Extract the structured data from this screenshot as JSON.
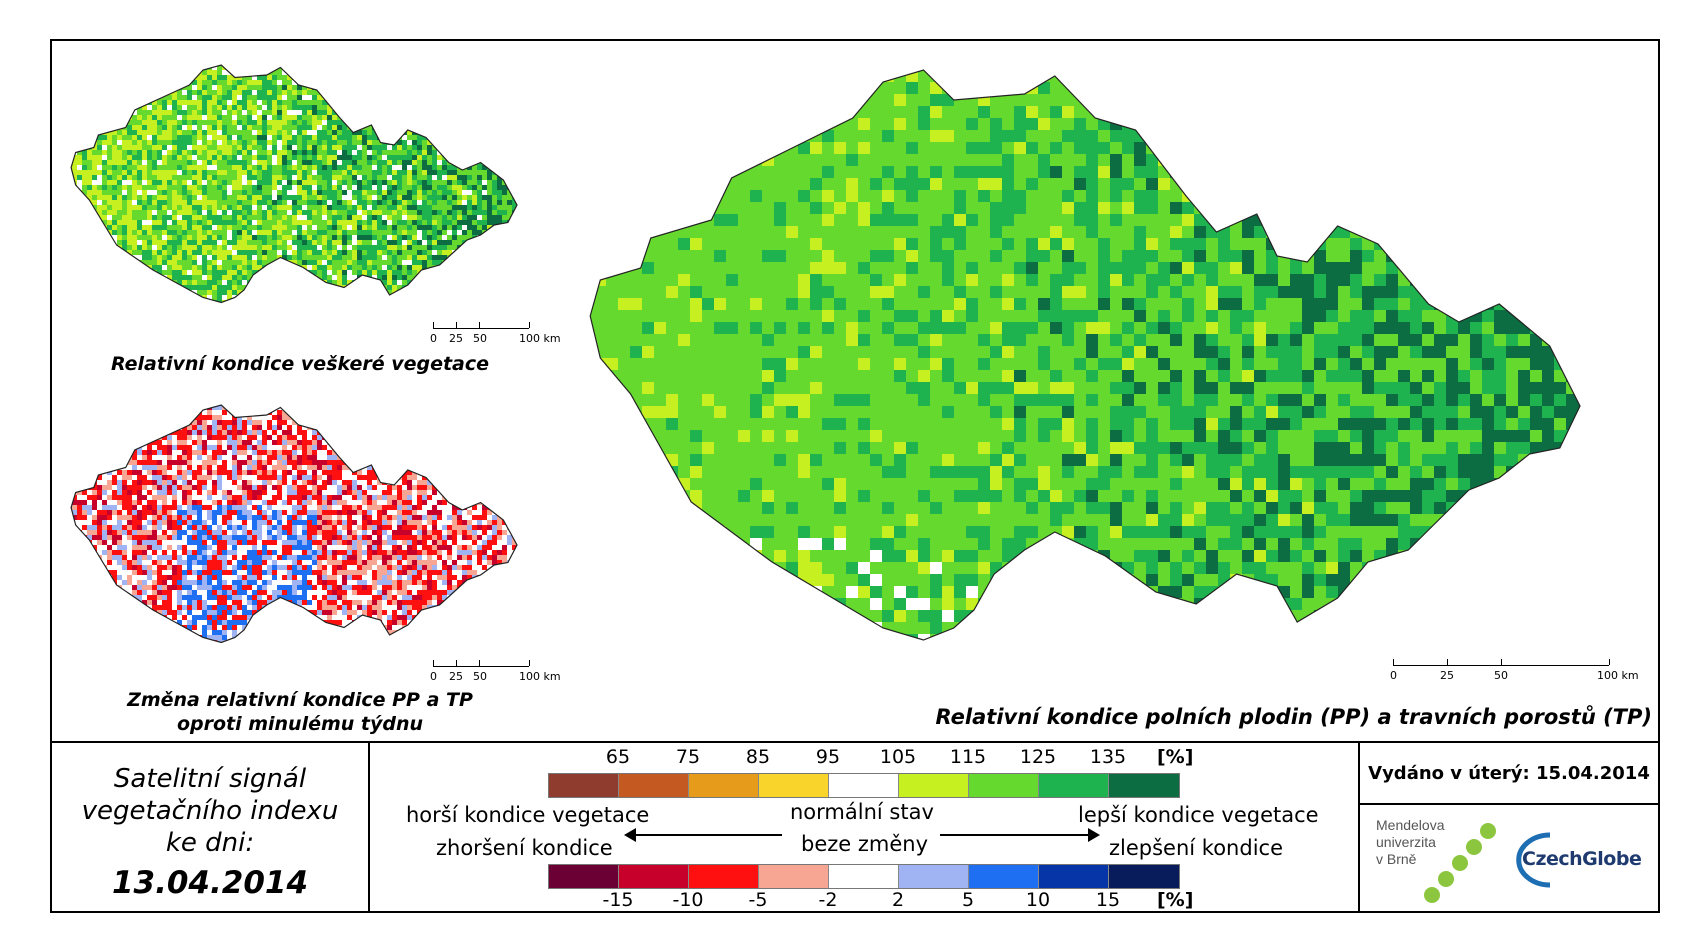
{
  "maps": {
    "top_left": {
      "caption": "Relativní kondice veškeré vegetace",
      "scale_labels": [
        "0",
        "25",
        "50",
        "100 km"
      ]
    },
    "bottom_left": {
      "caption_line1": "Změna relativní kondice PP a TP",
      "caption_line2": "oproti minulému týdnu",
      "scale_labels": [
        "0",
        "25",
        "50",
        "100 km"
      ]
    },
    "main": {
      "caption": "Relativní kondice polních plodin (PP) a travních porostů (TP)",
      "scale_labels": [
        "0",
        "25",
        "50",
        "100 km"
      ]
    }
  },
  "satellite": {
    "line1": "Satelitní signál",
    "line2": "vegetačního indexu",
    "line3": "ke dni:",
    "date": "13.04.2014"
  },
  "legend": {
    "condition_ticks": [
      "65",
      "75",
      "85",
      "95",
      "105",
      "115",
      "125",
      "135"
    ],
    "condition_unit": "[%]",
    "condition_colors": [
      "#8f3b2d",
      "#c45a22",
      "#e69b1b",
      "#f9d42a",
      "#ffffff",
      "#c6f020",
      "#66d92f",
      "#1fb34f",
      "#0c6d42"
    ],
    "change_ticks": [
      "-15",
      "-10",
      "-5",
      "-2",
      "2",
      "5",
      "10",
      "15"
    ],
    "change_unit": "[%]",
    "change_colors": [
      "#6b0034",
      "#c6002a",
      "#ff1010",
      "#f7a693",
      "#ffffff",
      "#a0b4f4",
      "#1f6ff2",
      "#0635a8",
      "#081b5a"
    ],
    "worse_condition": "horší kondice vegetace",
    "worse_change": "zhoršení kondice",
    "normal_state": "normální stav",
    "no_change": "beze změny",
    "better_condition": "lepší kondice vegetace",
    "better_change": "zlepšení kondice"
  },
  "issued": "Vydáno v úterý: 15.04.2014",
  "logos": {
    "mendel_line1": "Mendelova",
    "mendel_line2": "univerzita",
    "mendel_line3": "v Brně",
    "czechglobe": "CzechGlobe"
  }
}
